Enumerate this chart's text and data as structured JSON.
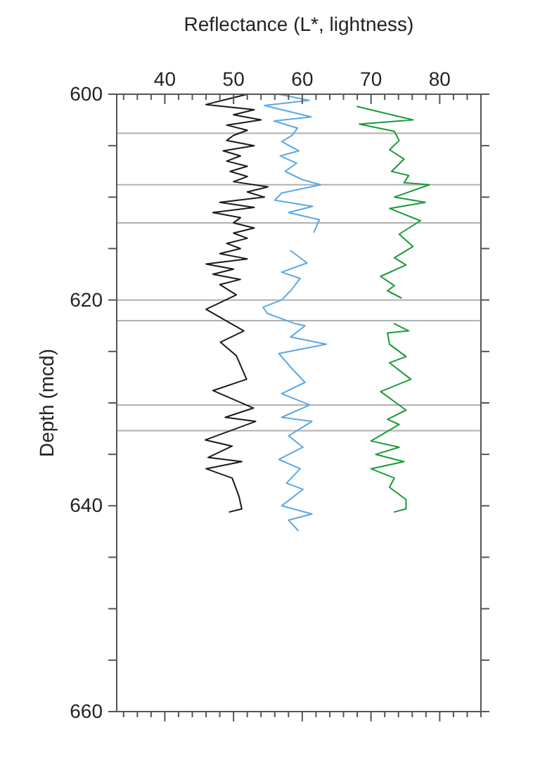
{
  "chart_data": {
    "type": "line",
    "xlabel": "Reflectance (L*, lightness)",
    "ylabel": "Depth (mcd)",
    "xlim": [
      33,
      86
    ],
    "ylim": [
      660,
      600
    ],
    "xticks": [
      {
        "value": 34,
        "label": null
      },
      {
        "value": 36,
        "label": null
      },
      {
        "value": 38,
        "label": null
      },
      40,
      {
        "value": 42,
        "label": null
      },
      {
        "value": 44,
        "label": null
      },
      {
        "value": 46,
        "label": null
      },
      {
        "value": 48,
        "label": null
      },
      50,
      {
        "value": 52,
        "label": null
      },
      {
        "value": 54,
        "label": null
      },
      {
        "value": 56,
        "label": null
      },
      {
        "value": 58,
        "label": null
      },
      60,
      {
        "value": 62,
        "label": null
      },
      {
        "value": 64,
        "label": null
      },
      {
        "value": 66,
        "label": null
      },
      {
        "value": 68,
        "label": null
      },
      70,
      {
        "value": 72,
        "label": null
      },
      {
        "value": 74,
        "label": null
      },
      {
        "value": 76,
        "label": null
      },
      {
        "value": 78,
        "label": null
      },
      80,
      {
        "value": 82,
        "label": null
      },
      {
        "value": 84,
        "label": null
      },
      {
        "value": 86,
        "label": null
      }
    ],
    "yticks": [
      600,
      {
        "value": 605,
        "label": null
      },
      {
        "value": 610,
        "label": null
      },
      {
        "value": 615,
        "label": null
      },
      620,
      {
        "value": 625,
        "label": null
      },
      {
        "value": 630,
        "label": null
      },
      {
        "value": 635,
        "label": null
      },
      640,
      {
        "value": 645,
        "label": null
      },
      {
        "value": 650,
        "label": null
      },
      {
        "value": 655,
        "label": null
      },
      660
    ],
    "grid": false,
    "marker": "none",
    "line_style": "solid",
    "ref_lines": [
      {
        "axis": "y",
        "value": 603.8,
        "color": "#b0b0b0"
      },
      {
        "axis": "y",
        "value": 608.8,
        "color": "#b0b0b0"
      },
      {
        "axis": "y",
        "value": 612.5,
        "color": "#b0b0b0"
      },
      {
        "axis": "y",
        "value": 620.0,
        "color": "#b0b0b0"
      },
      {
        "axis": "y",
        "value": 622.0,
        "color": "#b0b0b0"
      },
      {
        "axis": "y",
        "value": 630.2,
        "color": "#b0b0b0"
      },
      {
        "axis": "y",
        "value": 632.7,
        "color": "#b0b0b0"
      }
    ],
    "series": [
      {
        "color": "#1a1a1a",
        "x": [
          52,
          49,
          46,
          53,
          50,
          54,
          49,
          52,
          50,
          49,
          53,
          48.5,
          51,
          49,
          52,
          49.5,
          52,
          50,
          55,
          52,
          54.5,
          48,
          53,
          47,
          51,
          50,
          53,
          50,
          52,
          49,
          51,
          48,
          52,
          46,
          50,
          47,
          51,
          48,
          50.4,
          46,
          51.5,
          48.1,
          50.4,
          51.9,
          47,
          52.9,
          48.8,
          53.2,
          45.9,
          49.8,
          46.3,
          51.2,
          46,
          49.8,
          50.8,
          51.2,
          49.4
        ],
        "values": [
          600,
          600.5,
          601,
          601.5,
          602,
          602.5,
          603,
          603.5,
          604,
          604.5,
          605,
          605.5,
          606,
          606.5,
          607,
          607.5,
          608,
          608.5,
          609,
          609.5,
          610,
          610.5,
          611,
          611.5,
          612,
          612.5,
          613,
          613.5,
          614,
          614.5,
          615,
          615.5,
          616,
          616.5,
          617,
          617.5,
          618,
          618.5,
          619.5,
          620.9,
          623,
          624.1,
          625.4,
          627.7,
          628.8,
          630.5,
          631.4,
          631.8,
          633.6,
          634.2,
          635.3,
          635.7,
          636.4,
          637.3,
          639.1,
          640.3,
          640.6
        ]
      },
      {
        "color": "#5aa9e6",
        "x": [
          56.6,
          61,
          54.5,
          61.3,
          55.9,
          59.3,
          58.5,
          57,
          59.5,
          56.8,
          59.2,
          57.5,
          60,
          62.7,
          57,
          56,
          61.5,
          58,
          62.5,
          61.7,
          null,
          58.3,
          60.7,
          57,
          59.7,
          58.3,
          57,
          54.3,
          54.9,
          59,
          60.4,
          58.3,
          63.5,
          56.6,
          58.4,
          60.4,
          57,
          61.1,
          57,
          61.4,
          58,
          60.1,
          56.6,
          59.7,
          57.7,
          60.1,
          57,
          61.4,
          58,
          59.4
        ],
        "values": [
          600,
          600.6,
          601.1,
          602.2,
          602.6,
          603.3,
          604,
          604.6,
          605.5,
          606,
          606.7,
          607.5,
          608.3,
          608.8,
          609.6,
          610.3,
          610.9,
          611.5,
          612.2,
          613.4,
          null,
          615.2,
          616.4,
          617.3,
          617.9,
          619.1,
          620,
          620.7,
          621.3,
          622.3,
          622.5,
          623.6,
          624.3,
          625.2,
          626.6,
          628,
          629.1,
          630.2,
          631.4,
          631.8,
          633.2,
          634.3,
          635.5,
          636.4,
          637.8,
          638.4,
          640,
          640.8,
          641.4,
          642.4
        ]
      },
      {
        "color": "#1a9a3a",
        "x": [
          68,
          76.1,
          68.3,
          73.4,
          74.1,
          72.7,
          74.8,
          73,
          75.5,
          74.8,
          78.5,
          73.4,
          77.9,
          72.7,
          77.2,
          74.1,
          76.1,
          73.4,
          75.1,
          71.4,
          73.4,
          72.4,
          74.4,
          null,
          73.4,
          75.5,
          72.4,
          72.7,
          75.1,
          72.7,
          75.8,
          71.4,
          75.1,
          72.4,
          74.1,
          70,
          74.1,
          70.7,
          74.8,
          70,
          73.4,
          72.7,
          75.1,
          75.1,
          73.4
        ],
        "values": [
          601.2,
          602.5,
          602.9,
          603.6,
          604.5,
          605.4,
          606.3,
          607.5,
          607.9,
          608.6,
          608.8,
          610,
          610.5,
          611.1,
          612.3,
          613.6,
          614.8,
          615.9,
          616.6,
          617.7,
          618.6,
          619.1,
          619.8,
          null,
          622.3,
          623,
          623.2,
          624.3,
          625.5,
          626.1,
          627.7,
          628.9,
          630.7,
          631.6,
          632.1,
          633.7,
          634.3,
          635,
          635.7,
          636.4,
          637.3,
          638.2,
          639.4,
          640.3,
          640.6
        ]
      }
    ]
  }
}
